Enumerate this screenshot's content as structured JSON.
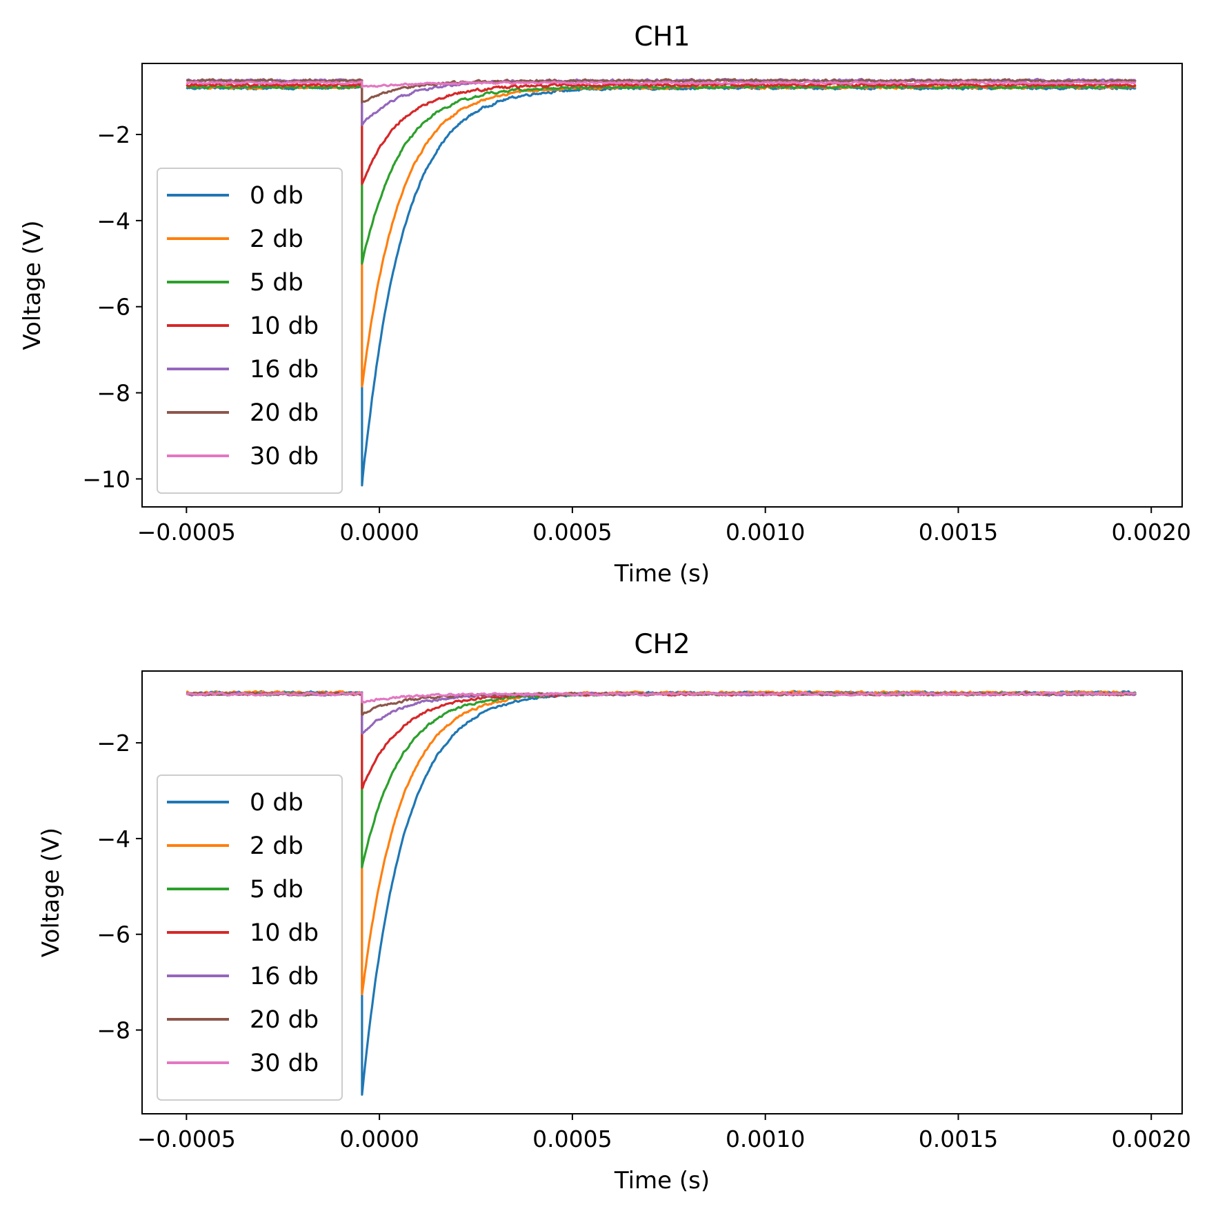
{
  "colors": {
    "blue": "#1f77b4",
    "orange": "#ff7f0e",
    "green": "#2ca02c",
    "red": "#d62728",
    "purple": "#9467bd",
    "brown": "#8c564b",
    "pink": "#e377c2"
  },
  "chart_data": [
    {
      "type": "line",
      "title": "CH1",
      "xlabel": "Time (s)",
      "ylabel": "Voltage (V)",
      "xlim": [
        -0.000615,
        0.00208
      ],
      "ylim": [
        -10.65,
        -0.35
      ],
      "x_ticks": [
        -0.0005,
        0.0,
        0.0005,
        0.001,
        0.0015,
        0.002
      ],
      "x_tick_labels": [
        "−0.0005",
        "0.0000",
        "0.0005",
        "0.0010",
        "0.0015",
        "0.0020"
      ],
      "y_ticks": [
        -2,
        -4,
        -6,
        -8,
        -10
      ],
      "y_tick_labels": [
        "−2",
        "−4",
        "−6",
        "−8",
        "−10"
      ],
      "grid": false,
      "legend_position": "lower-left",
      "x_range": [
        -0.0005,
        0.00196
      ],
      "pulse_time": -4.5e-05,
      "series": [
        {
          "name": "0 db",
          "color": "#1f77b4",
          "baseline": -0.92,
          "peak": -10.15,
          "tau": 0.000105,
          "noise": 0.05
        },
        {
          "name": "2 db",
          "color": "#ff7f0e",
          "baseline": -0.9,
          "peak": -7.85,
          "tau": 0.0001,
          "noise": 0.05
        },
        {
          "name": "5 db",
          "color": "#2ca02c",
          "baseline": -0.9,
          "peak": -5.0,
          "tau": 0.0001,
          "noise": 0.05
        },
        {
          "name": "10 db",
          "color": "#d62728",
          "baseline": -0.85,
          "peak": -3.15,
          "tau": 0.0001,
          "noise": 0.05
        },
        {
          "name": "16 db",
          "color": "#9467bd",
          "baseline": -0.75,
          "peak": -1.78,
          "tau": 0.0001,
          "noise": 0.05
        },
        {
          "name": "20 db",
          "color": "#8c564b",
          "baseline": -0.75,
          "peak": -1.25,
          "tau": 0.0001,
          "noise": 0.05
        },
        {
          "name": "30 db",
          "color": "#e377c2",
          "baseline": -0.8,
          "peak": -0.9,
          "tau": 0.0001,
          "noise": 0.04
        }
      ]
    },
    {
      "type": "line",
      "title": "CH2",
      "xlabel": "Time (s)",
      "ylabel": "Voltage (V)",
      "xlim": [
        -0.000615,
        0.00208
      ],
      "ylim": [
        -9.75,
        -0.5
      ],
      "x_ticks": [
        -0.0005,
        0.0,
        0.0005,
        0.001,
        0.0015,
        0.002
      ],
      "x_tick_labels": [
        "−0.0005",
        "0.0000",
        "0.0005",
        "0.0010",
        "0.0015",
        "0.0020"
      ],
      "y_ticks": [
        -2,
        -4,
        -6,
        -8
      ],
      "y_tick_labels": [
        "−2",
        "−4",
        "−6",
        "−8"
      ],
      "grid": false,
      "legend_position": "lower-left",
      "x_range": [
        -0.0005,
        0.00196
      ],
      "pulse_time": -4.5e-05,
      "series": [
        {
          "name": "0 db",
          "color": "#1f77b4",
          "baseline": -0.95,
          "peak": -9.35,
          "tau": 0.000105,
          "noise": 0.04
        },
        {
          "name": "2 db",
          "color": "#ff7f0e",
          "baseline": -0.95,
          "peak": -7.25,
          "tau": 0.0001,
          "noise": 0.04
        },
        {
          "name": "5 db",
          "color": "#2ca02c",
          "baseline": -0.98,
          "peak": -4.6,
          "tau": 0.0001,
          "noise": 0.04
        },
        {
          "name": "10 db",
          "color": "#d62728",
          "baseline": -0.98,
          "peak": -2.95,
          "tau": 0.0001,
          "noise": 0.04
        },
        {
          "name": "16 db",
          "color": "#9467bd",
          "baseline": -0.98,
          "peak": -1.8,
          "tau": 0.0001,
          "noise": 0.04
        },
        {
          "name": "20 db",
          "color": "#8c564b",
          "baseline": -0.98,
          "peak": -1.4,
          "tau": 0.0001,
          "noise": 0.04
        },
        {
          "name": "30 db",
          "color": "#e377c2",
          "baseline": -0.98,
          "peak": -1.15,
          "tau": 0.0001,
          "noise": 0.04
        }
      ]
    }
  ]
}
